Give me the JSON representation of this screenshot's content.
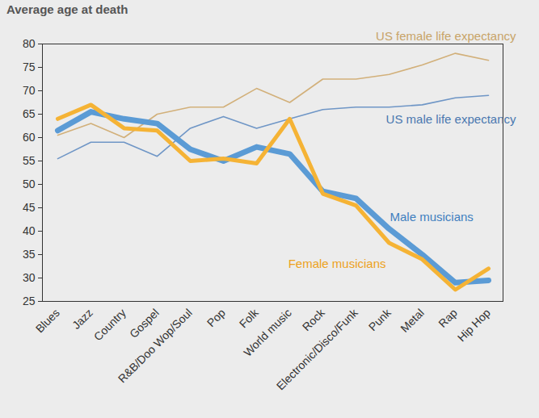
{
  "chart_data": {
    "type": "line",
    "title": "Average age at death",
    "categories": [
      "Blues",
      "Jazz",
      "Country",
      "Gospel",
      "R&B/Doo Wop/Soul",
      "Pop",
      "Folk",
      "World music",
      "Rock",
      "Electronic/Disco/Funk",
      "Punk",
      "Metal",
      "Rap",
      "Hip Hop"
    ],
    "series": [
      {
        "name": "US female life expectancy",
        "color": "#d2b07a",
        "values": [
          60.5,
          63,
          60,
          65,
          66.5,
          66.5,
          70.5,
          67.5,
          72.5,
          72.5,
          73.5,
          75.5,
          78,
          76.5
        ]
      },
      {
        "name": "US male life expectancy",
        "color": "#6f96c6",
        "values": [
          55.5,
          59,
          59,
          56,
          62,
          64.5,
          62,
          64,
          66,
          66.5,
          66.5,
          67,
          68.5,
          69
        ]
      },
      {
        "name": "Male musicians",
        "color": "#5b9bd5",
        "values": [
          61.5,
          65.5,
          64,
          63,
          57.5,
          55,
          58,
          56.5,
          48.5,
          47,
          40.5,
          35,
          29,
          29.5
        ]
      },
      {
        "name": "Female musicians",
        "color": "#f5b335",
        "values": [
          64,
          67,
          62,
          61.5,
          55,
          55.5,
          54.5,
          64,
          48,
          45.5,
          37.5,
          34,
          27.5,
          32
        ]
      }
    ],
    "ylim": [
      25,
      80
    ],
    "yticks": [
      25,
      30,
      35,
      40,
      45,
      50,
      55,
      60,
      65,
      70,
      75,
      80
    ],
    "grid": false
  }
}
